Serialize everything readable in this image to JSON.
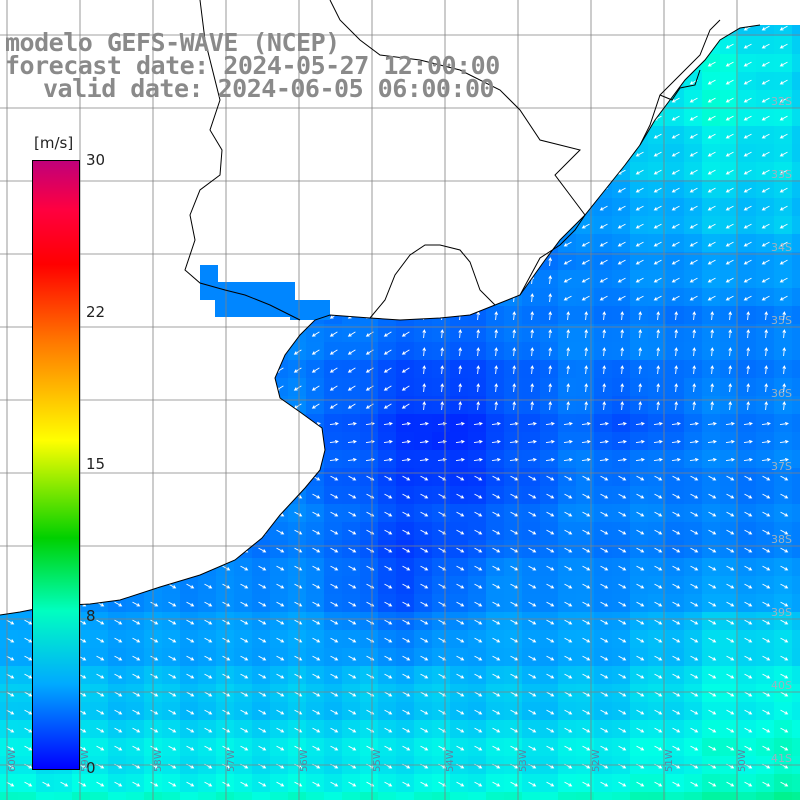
{
  "title": {
    "line1": "modelo GEFS-WAVE (NCEP)",
    "line2": "forecast date: 2024-05-27 12:00:00",
    "line3": "valid date: 2024-06-05 06:00:00"
  },
  "colorbar": {
    "unit": "[m/s]",
    "ticks": [
      "30",
      "22",
      "15",
      "8",
      "0"
    ],
    "tick_values": [
      30,
      22,
      15,
      8,
      0
    ]
  },
  "lat_labels": [
    "32S",
    "33S",
    "34S",
    "35S",
    "36S",
    "37S",
    "38S",
    "39S",
    "40S",
    "41S"
  ],
  "lon_labels": [
    "60W",
    "59W",
    "58W",
    "57W",
    "56W",
    "55W",
    "54W",
    "53W",
    "52W",
    "51W",
    "50W"
  ],
  "colors": {
    "land": "#ffffff",
    "grid": "#808080",
    "coast": "#000000",
    "arrow": "#ffffff",
    "calm": "#0010e0",
    "mid": "#0080ff",
    "fresh": "#00ffd0"
  }
}
